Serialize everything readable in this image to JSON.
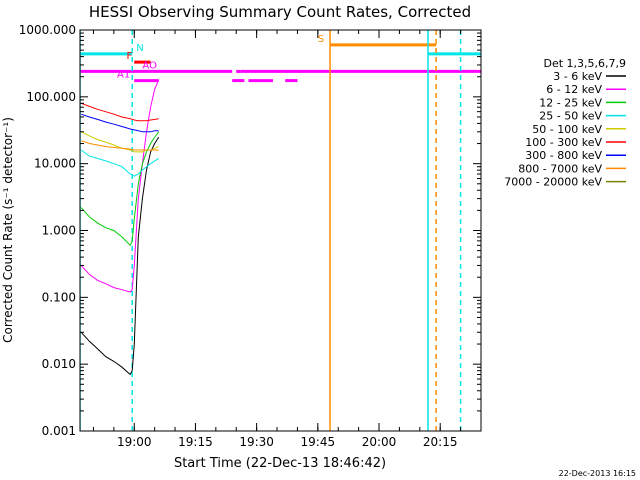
{
  "chart_data": {
    "type": "line",
    "title": "HESSI Observing Summary Count Rates, Corrected",
    "ylabel": "Corrected Count Rate (s⁻¹ detector⁻¹)",
    "xlabel": "Start Time (22-Dec-13 18:46:42)",
    "yscale": "log",
    "ylim": [
      0.001,
      1000
    ],
    "xlim": [
      "18:46:42",
      "20:25:00"
    ],
    "y_ticks": [
      "0.001",
      "0.010",
      "0.100",
      "1.000",
      "10.000",
      "100.000",
      "1000.000"
    ],
    "x_ticks": [
      "19:00",
      "19:15",
      "19:30",
      "19:45",
      "20:00",
      "20:15"
    ],
    "legend_title": "Det 1,3,5,6,7,9",
    "legend_position": "right",
    "series": [
      {
        "name": "3 - 6 keV",
        "color": "#000000",
        "x": [
          "18:47",
          "18:49",
          "18:51",
          "18:53",
          "18:55",
          "18:57",
          "18:59",
          "18:59:30",
          "19:00",
          "19:01",
          "19:02",
          "19:03",
          "19:04",
          "19:05",
          "19:06"
        ],
        "y": [
          0.03,
          0.022,
          0.017,
          0.013,
          0.011,
          0.009,
          0.007,
          0.008,
          0.02,
          0.8,
          3,
          8,
          15,
          20,
          25
        ]
      },
      {
        "name": "6 - 12 keV",
        "color": "#ff00ff",
        "x": [
          "18:47",
          "18:49",
          "18:51",
          "18:53",
          "18:55",
          "18:57",
          "18:59",
          "18:59:30",
          "19:00",
          "19:01",
          "19:02",
          "19:03",
          "19:04",
          "19:05",
          "19:06"
        ],
        "y": [
          0.3,
          0.22,
          0.18,
          0.16,
          0.14,
          0.13,
          0.12,
          0.13,
          0.3,
          3,
          10,
          30,
          70,
          130,
          180
        ]
      },
      {
        "name": "12 - 25 keV",
        "color": "#00cc00",
        "x": [
          "18:47",
          "18:49",
          "18:51",
          "18:53",
          "18:55",
          "18:57",
          "18:59",
          "18:59:30",
          "19:00",
          "19:01",
          "19:02",
          "19:03",
          "19:04",
          "19:05",
          "19:06"
        ],
        "y": [
          2.2,
          1.6,
          1.3,
          1.1,
          1.0,
          0.8,
          0.6,
          0.7,
          1.5,
          5,
          10,
          15,
          20,
          25,
          30
        ]
      },
      {
        "name": "25 - 50 keV",
        "color": "#00e5e5",
        "x": [
          "18:47",
          "18:49",
          "18:51",
          "18:53",
          "18:55",
          "18:57",
          "18:59",
          "19:00",
          "19:01",
          "19:02",
          "19:03",
          "19:04",
          "19:05",
          "19:06"
        ],
        "y": [
          16,
          13,
          12,
          11,
          10,
          9,
          7,
          6.5,
          7,
          8,
          9,
          10,
          11,
          12
        ]
      },
      {
        "name": "50 - 100 keV",
        "color": "#cccc00",
        "x": [
          "18:47",
          "18:49",
          "18:51",
          "18:53",
          "18:55",
          "18:57",
          "18:59",
          "19:00",
          "19:01",
          "19:02",
          "19:03",
          "19:04",
          "19:05",
          "19:06"
        ],
        "y": [
          30,
          26,
          23,
          21,
          19,
          17,
          16,
          15,
          15,
          15,
          16,
          16,
          17,
          18
        ]
      },
      {
        "name": "100 - 300 keV",
        "color": "#ff0000",
        "x": [
          "18:47",
          "18:49",
          "18:51",
          "18:53",
          "18:55",
          "18:57",
          "18:59",
          "19:00",
          "19:01",
          "19:02",
          "19:03",
          "19:04",
          "19:05",
          "19:06"
        ],
        "y": [
          80,
          72,
          65,
          60,
          55,
          50,
          47,
          45,
          44,
          44,
          44,
          45,
          46,
          47
        ]
      },
      {
        "name": "300 - 800 keV",
        "color": "#0000ff",
        "x": [
          "18:47",
          "18:49",
          "18:51",
          "18:53",
          "18:55",
          "18:57",
          "18:59",
          "19:00",
          "19:01",
          "19:02",
          "19:03",
          "19:04",
          "19:05",
          "19:06"
        ],
        "y": [
          55,
          50,
          46,
          42,
          39,
          36,
          33,
          32,
          31,
          30,
          30,
          30,
          31,
          31
        ]
      },
      {
        "name": "800 - 7000 keV",
        "color": "#ff8c00",
        "x": [
          "18:47",
          "18:49",
          "18:51",
          "18:53",
          "18:55",
          "18:57",
          "18:59",
          "19:00",
          "19:01",
          "19:02",
          "19:03",
          "19:04",
          "19:05",
          "19:06"
        ],
        "y": [
          22,
          20,
          19,
          18,
          17.5,
          17,
          16.5,
          16,
          16,
          16,
          16,
          16,
          16,
          16
        ]
      },
      {
        "name": "7000 - 20000 keV",
        "color": "#808000",
        "x": [],
        "y": []
      }
    ],
    "flag_labels": [
      "N",
      "F",
      "AO",
      "A1",
      "S"
    ],
    "flags": [
      {
        "label": "N",
        "color": "#00e5e5",
        "y": 440,
        "segments": [
          [
            "18:46:42",
            "18:59:30"
          ],
          [
            "20:12:00",
            "20:25:00"
          ]
        ]
      },
      {
        "label": "F",
        "color": "#ff0000",
        "y": 330,
        "segments": [
          [
            "19:00:00",
            "19:04:00"
          ]
        ]
      },
      {
        "label": "AO",
        "color": "#ff00ff",
        "y": 240,
        "segments": [
          [
            "18:46:42",
            "19:24:00"
          ],
          [
            "19:25:00",
            "19:26:00"
          ],
          [
            "19:26:00",
            "20:25:00"
          ]
        ]
      },
      {
        "label": "A1",
        "color": "#ff00ff",
        "y": 175,
        "segments": [
          [
            "19:00:00",
            "19:06:00"
          ],
          [
            "19:24:00",
            "19:27:00"
          ],
          [
            "19:28:00",
            "19:34:00"
          ],
          [
            "19:37:00",
            "19:40:00"
          ]
        ]
      },
      {
        "label": "S",
        "color": "#ff8c00",
        "y": 600,
        "segments": [
          [
            "19:48:00",
            "20:14:00"
          ]
        ]
      }
    ],
    "vlines": [
      {
        "t": "18:46:42",
        "color": "#00e5e5",
        "style": "solid"
      },
      {
        "t": "18:59:30",
        "color": "#00e5e5",
        "style": "dashed"
      },
      {
        "t": "19:48:00",
        "color": "#ff8c00",
        "style": "solid"
      },
      {
        "t": "20:12:00",
        "color": "#00e5e5",
        "style": "solid"
      },
      {
        "t": "20:14:00",
        "color": "#ff8c00",
        "style": "dashed"
      },
      {
        "t": "20:20:00",
        "color": "#00e5e5",
        "style": "dashed"
      }
    ]
  },
  "footer": {
    "timestamp": "22-Dec-2013 16:15"
  }
}
